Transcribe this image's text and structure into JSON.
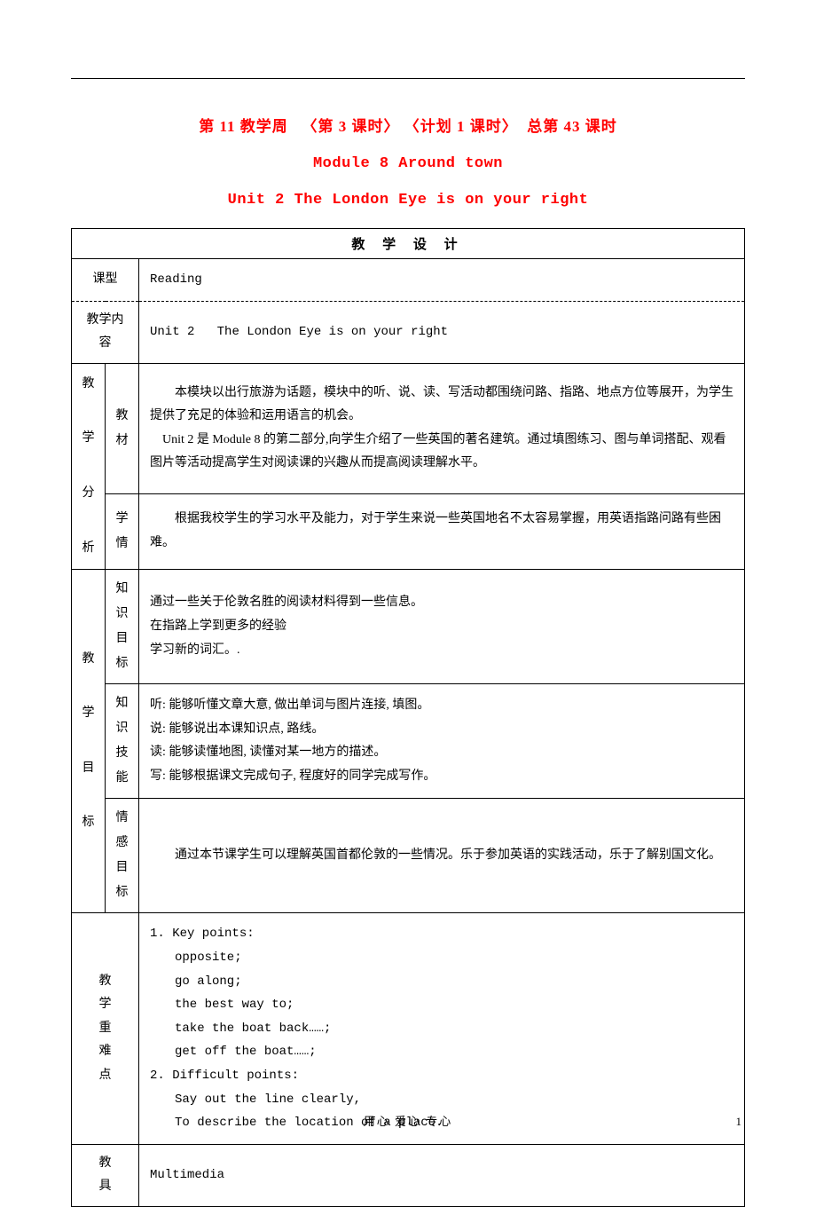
{
  "header": {
    "week": "第 11 教学周",
    "lesson": "〈第 3 课时〉 〈计划 1 课时〉",
    "total": "总第 43 课时",
    "module": "Module 8 Around town",
    "unit": "Unit 2 The London Eye is on your right"
  },
  "table_title": "教 学 设 计",
  "rows": {
    "lesson_type": {
      "label": "课型",
      "value": "Reading"
    },
    "teaching_content": {
      "label": "教学内容",
      "value_prefix": "Unit 2",
      "value_rest": "The London Eye is on your right"
    },
    "analysis": {
      "label": "教学分析",
      "material": {
        "label": "教材",
        "text1": "本模块以出行旅游为话题，模块中的听、说、读、写活动都围绕问路、指路、地点方位等展开，为学生提供了充足的体验和运用语言的机会。",
        "text2": "Unit 2 是 Module 8 的第二部分,向学生介绍了一些英国的著名建筑。通过填图练习、图与单词搭配、观看图片等活动提高学生对阅读课的兴趣从而提高阅读理解水平。"
      },
      "students": {
        "label": "学情",
        "text": "根据我校学生的学习水平及能力，对于学生来说一些英国地名不太容易掌握，用英语指路问路有些困难。"
      }
    },
    "objectives": {
      "label": "教学目标",
      "knowledge": {
        "label": "知识目标",
        "line1": "通过一些关于伦敦名胜的阅读材料得到一些信息。",
        "line2": "在指路上学到更多的经验",
        "line3": "学习新的词汇。."
      },
      "skills": {
        "label": "知识技能",
        "line1": "听: 能够听懂文章大意, 做出单词与图片连接, 填图。",
        "line2": "说: 能够说出本课知识点, 路线。",
        "line3": "读: 能够读懂地图, 读懂对某一地方的描述。",
        "line4": "写: 能够根据课文完成句子, 程度好的同学完成写作。"
      },
      "emotion": {
        "label": "情感目标",
        "text": "通过本节课学生可以理解英国首都伦敦的一些情况。乐于参加英语的实践活动，乐于了解别国文化。"
      }
    },
    "keypoints": {
      "label": "教学重难点",
      "h1": "1. Key points:",
      "l1": "opposite;",
      "l2": "go along;",
      "l3": "the best way to;",
      "l4": "take the boat back……;",
      "l5": "get off the boat……;",
      "h2": "2. Difficult points:",
      "l6": "Say out the line clearly,",
      "l7": "To describe the location of a place."
    },
    "tools": {
      "label": "教具",
      "value": "Multimedia"
    }
  },
  "footer": {
    "text": "用心   爱心   专心",
    "page": "1"
  },
  "colors": {
    "red": "#ff0000",
    "black": "#000000",
    "bg": "#ffffff"
  }
}
